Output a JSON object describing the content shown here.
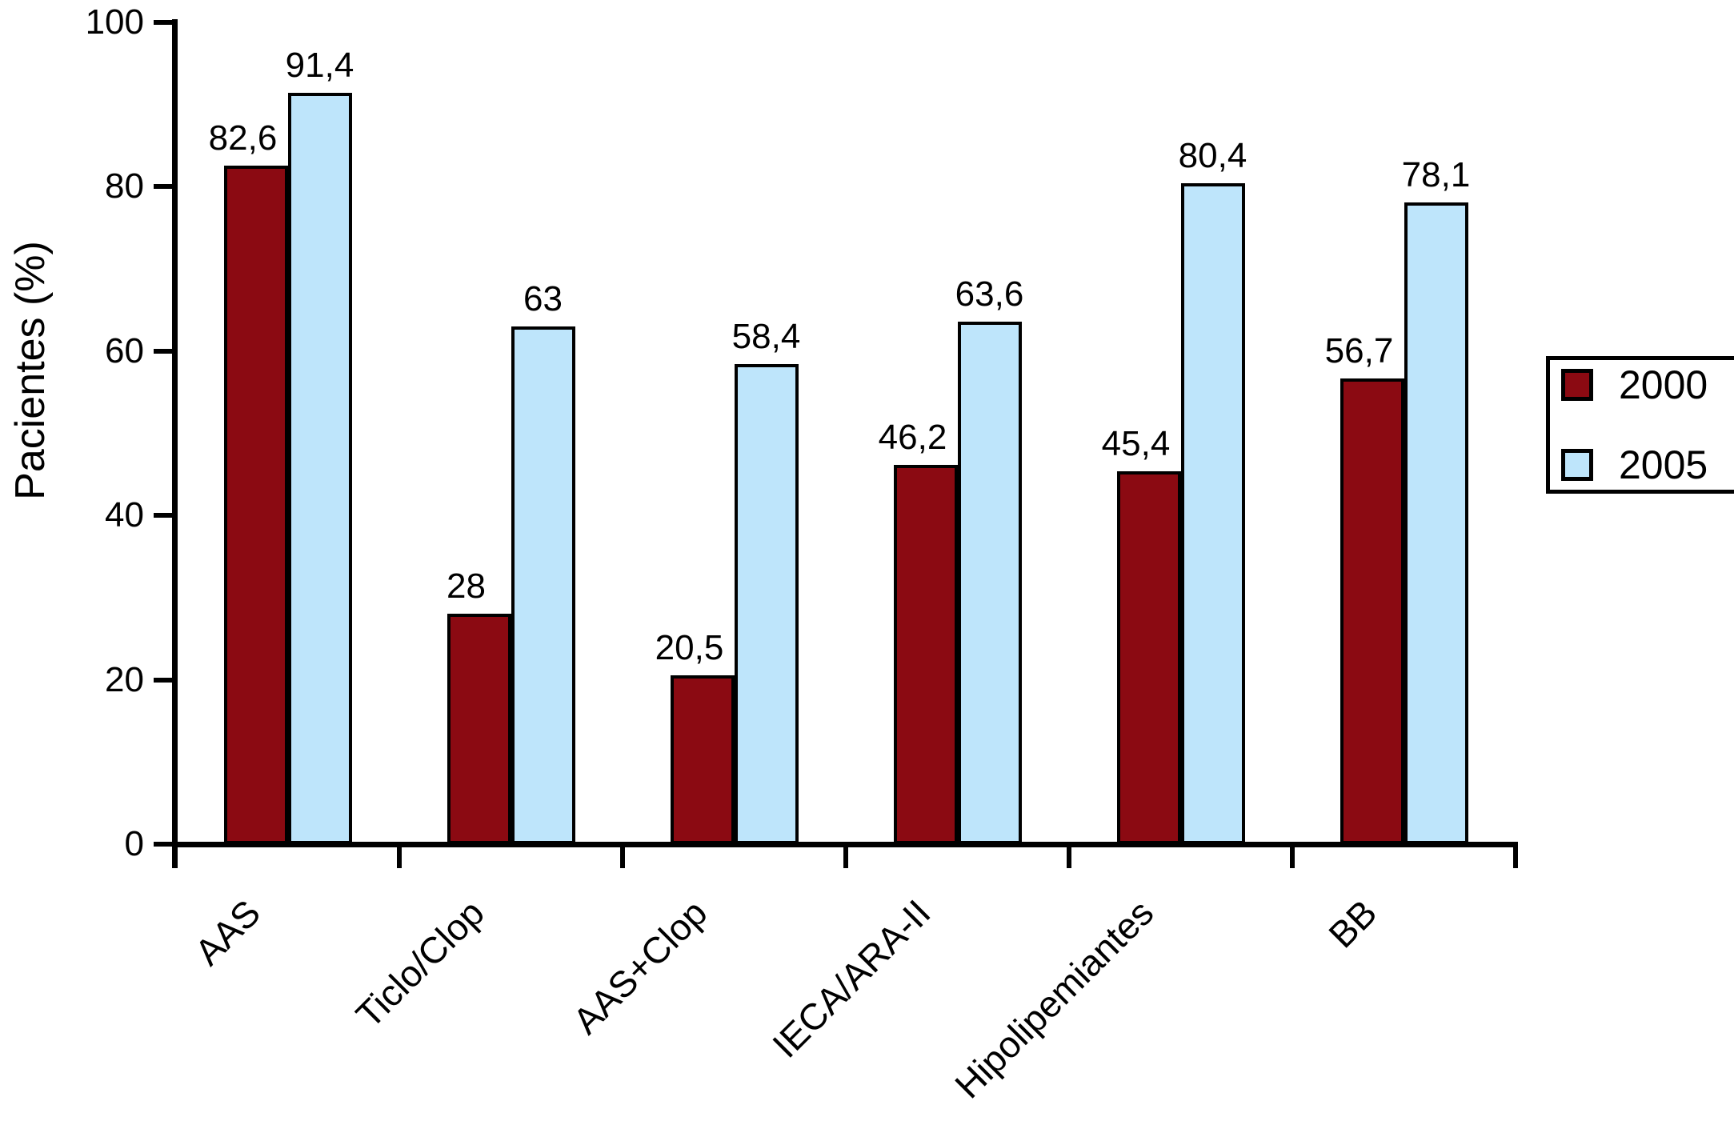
{
  "figure": {
    "background_color": "#ffffff",
    "axis_color": "#000000"
  },
  "chart_data": {
    "type": "bar",
    "title": "",
    "xlabel": "",
    "ylabel": "Pacientes (%)",
    "ylim": [
      0,
      100
    ],
    "yticks": [
      0,
      20,
      40,
      60,
      80,
      100
    ],
    "grid": false,
    "legend_position": "right",
    "bar_outline_color": "#000000",
    "categories": [
      "AAS",
      "Ticlo/Clop",
      "AAS+Clop",
      "IECA/ARA-II",
      "Hipolipemiantes",
      "BB"
    ],
    "series": [
      {
        "name": "2000",
        "color": "#8B0A12",
        "values": [
          82.6,
          28,
          20.5,
          46.2,
          45.4,
          56.7
        ],
        "labels": [
          "82,6",
          "28",
          "20,5",
          "46,2",
          "45,4",
          "56,7"
        ]
      },
      {
        "name": "2005",
        "color": "#BEE5FB",
        "values": [
          91.4,
          63,
          58.4,
          63.6,
          80.4,
          78.1
        ],
        "labels": [
          "91,4",
          "63",
          "58,4",
          "63,6",
          "80,4",
          "78,1"
        ]
      }
    ]
  },
  "legend": {
    "items": [
      {
        "label": "2000"
      },
      {
        "label": "2005"
      }
    ]
  }
}
